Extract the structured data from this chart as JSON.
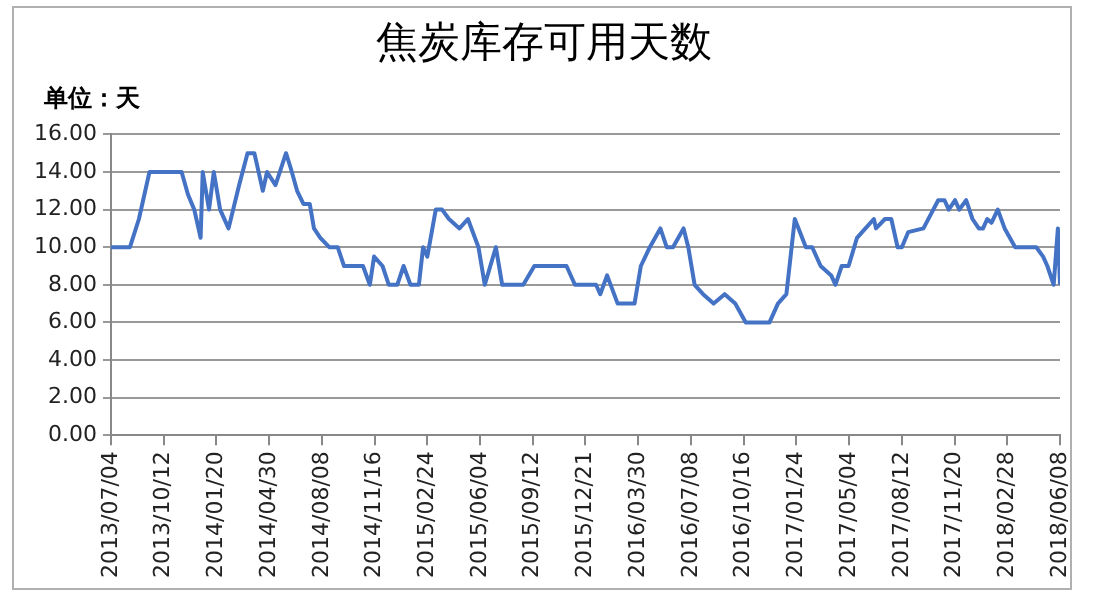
{
  "chart_data": {
    "type": "line",
    "title": "焦炭库存可用天数",
    "annotations": [
      "单位：天"
    ],
    "x": [
      "2013-07-04",
      "2013-08-09",
      "2013-08-26",
      "2013-09-15",
      "2013-11-15",
      "2013-11-27",
      "2013-12-09",
      "2013-12-21",
      "2013-12-25",
      "2014-01-06",
      "2014-01-15",
      "2014-01-27",
      "2014-02-12",
      "2014-03-04",
      "2014-03-20",
      "2014-04-02",
      "2014-04-18",
      "2014-04-26",
      "2014-05-12",
      "2014-06-01",
      "2014-06-10",
      "2014-06-22",
      "2014-07-04",
      "2014-07-16",
      "2014-07-24",
      "2014-08-05",
      "2014-08-22",
      "2014-09-07",
      "2014-09-19",
      "2014-10-25",
      "2014-11-07",
      "2014-11-15",
      "2014-12-01",
      "2014-12-13",
      "2014-12-29",
      "2015-01-10",
      "2015-01-23",
      "2015-02-08",
      "2015-02-16",
      "2015-02-24",
      "2015-03-12",
      "2015-03-24",
      "2015-04-06",
      "2015-04-26",
      "2015-05-12",
      "2015-06-01",
      "2015-06-13",
      "2015-07-04",
      "2015-07-16",
      "2015-08-25",
      "2015-09-15",
      "2015-11-15",
      "2015-12-01",
      "2016-01-10",
      "2016-01-18",
      "2016-01-31",
      "2016-02-20",
      "2016-03-23",
      "2016-04-04",
      "2016-04-21",
      "2016-05-11",
      "2016-05-23",
      "2016-06-04",
      "2016-06-24",
      "2016-07-03",
      "2016-07-15",
      "2016-07-31",
      "2016-08-20",
      "2016-09-10",
      "2016-09-30",
      "2016-10-20",
      "2016-12-04",
      "2016-12-20",
      "2017-01-05",
      "2017-01-21",
      "2017-02-11",
      "2017-02-23",
      "2017-03-11",
      "2017-03-31",
      "2017-04-08",
      "2017-04-20",
      "2017-05-03",
      "2017-05-19",
      "2017-06-04",
      "2017-06-20",
      "2017-06-24",
      "2017-07-11",
      "2017-07-23",
      "2017-08-04",
      "2017-08-12",
      "2017-08-24",
      "2017-09-22",
      "2017-10-20",
      "2017-11-01",
      "2017-11-09",
      "2017-11-21",
      "2017-11-29",
      "2017-12-12",
      "2017-12-24",
      "2018-01-05",
      "2018-01-13",
      "2018-01-21",
      "2018-01-29",
      "2018-02-10",
      "2018-02-23",
      "2018-03-15",
      "2018-04-24",
      "2018-05-07",
      "2018-05-15",
      "2018-05-27",
      "2018-06-04",
      "2018-06-08"
    ],
    "series": [
      {
        "color": "#4472c4",
        "values": [
          10,
          10,
          11.5,
          14,
          14,
          12.8,
          12,
          10.5,
          14,
          12,
          14,
          12,
          11,
          13.3,
          15,
          15,
          13,
          14,
          13.3,
          15,
          14.2,
          13,
          12.3,
          12.3,
          11,
          10.5,
          10,
          10,
          9,
          9,
          8,
          9.5,
          9,
          8,
          8,
          9,
          8,
          8,
          10,
          9.5,
          12,
          12,
          11.5,
          11,
          11.5,
          10,
          8,
          10,
          8,
          8,
          9,
          9,
          8,
          8,
          7.5,
          8.5,
          7,
          7,
          9,
          10,
          11,
          10,
          10,
          11,
          10,
          8,
          7.5,
          7,
          7.5,
          7,
          6,
          6,
          7,
          7.5,
          11.5,
          10,
          10,
          9,
          8.5,
          8,
          9,
          9,
          10.5,
          11,
          11.5,
          11,
          11.5,
          11.5,
          10,
          10,
          10.8,
          11,
          12.5,
          12.5,
          12,
          12.5,
          12,
          12.5,
          11.5,
          11,
          11,
          11.5,
          11.3,
          12,
          11,
          10,
          10,
          9.5,
          9,
          8,
          11,
          8
        ]
      }
    ],
    "xlim": [
      "2013-07-04",
      "2018-06-08"
    ],
    "xticks": [
      {
        "value": "2013-07-04",
        "label": "2013/07/04"
      },
      {
        "value": "2013-10-12",
        "label": "2013/10/12"
      },
      {
        "value": "2014-01-20",
        "label": "2014/01/20"
      },
      {
        "value": "2014-04-30",
        "label": "2014/04/30"
      },
      {
        "value": "2014-08-08",
        "label": "2014/08/08"
      },
      {
        "value": "2014-11-16",
        "label": "2014/11/16"
      },
      {
        "value": "2015-02-24",
        "label": "2015/02/24"
      },
      {
        "value": "2015-06-04",
        "label": "2015/06/04"
      },
      {
        "value": "2015-09-12",
        "label": "2015/09/12"
      },
      {
        "value": "2015-12-21",
        "label": "2015/12/21"
      },
      {
        "value": "2016-03-30",
        "label": "2016/03/30"
      },
      {
        "value": "2016-07-08",
        "label": "2016/07/08"
      },
      {
        "value": "2016-10-16",
        "label": "2016/10/16"
      },
      {
        "value": "2017-01-24",
        "label": "2017/01/24"
      },
      {
        "value": "2017-05-04",
        "label": "2017/05/04"
      },
      {
        "value": "2017-08-12",
        "label": "2017/08/12"
      },
      {
        "value": "2017-11-20",
        "label": "2017/11/20"
      },
      {
        "value": "2018-02-28",
        "label": "2018/02/28"
      },
      {
        "value": "2018-06-08",
        "label": "2018/06/08"
      }
    ],
    "ylim": [
      0,
      16
    ],
    "yticks": [
      {
        "value": 0,
        "label": "0.00"
      },
      {
        "value": 2,
        "label": "2.00"
      },
      {
        "value": 4,
        "label": "4.00"
      },
      {
        "value": 6,
        "label": "6.00"
      },
      {
        "value": 8,
        "label": "8.00"
      },
      {
        "value": 10,
        "label": "10.00"
      },
      {
        "value": 12,
        "label": "12.00"
      },
      {
        "value": 14,
        "label": "14.00"
      },
      {
        "value": 16,
        "label": "16.00"
      }
    ],
    "grid": "y",
    "legend": false,
    "marker": "none",
    "line_style": "solid"
  }
}
